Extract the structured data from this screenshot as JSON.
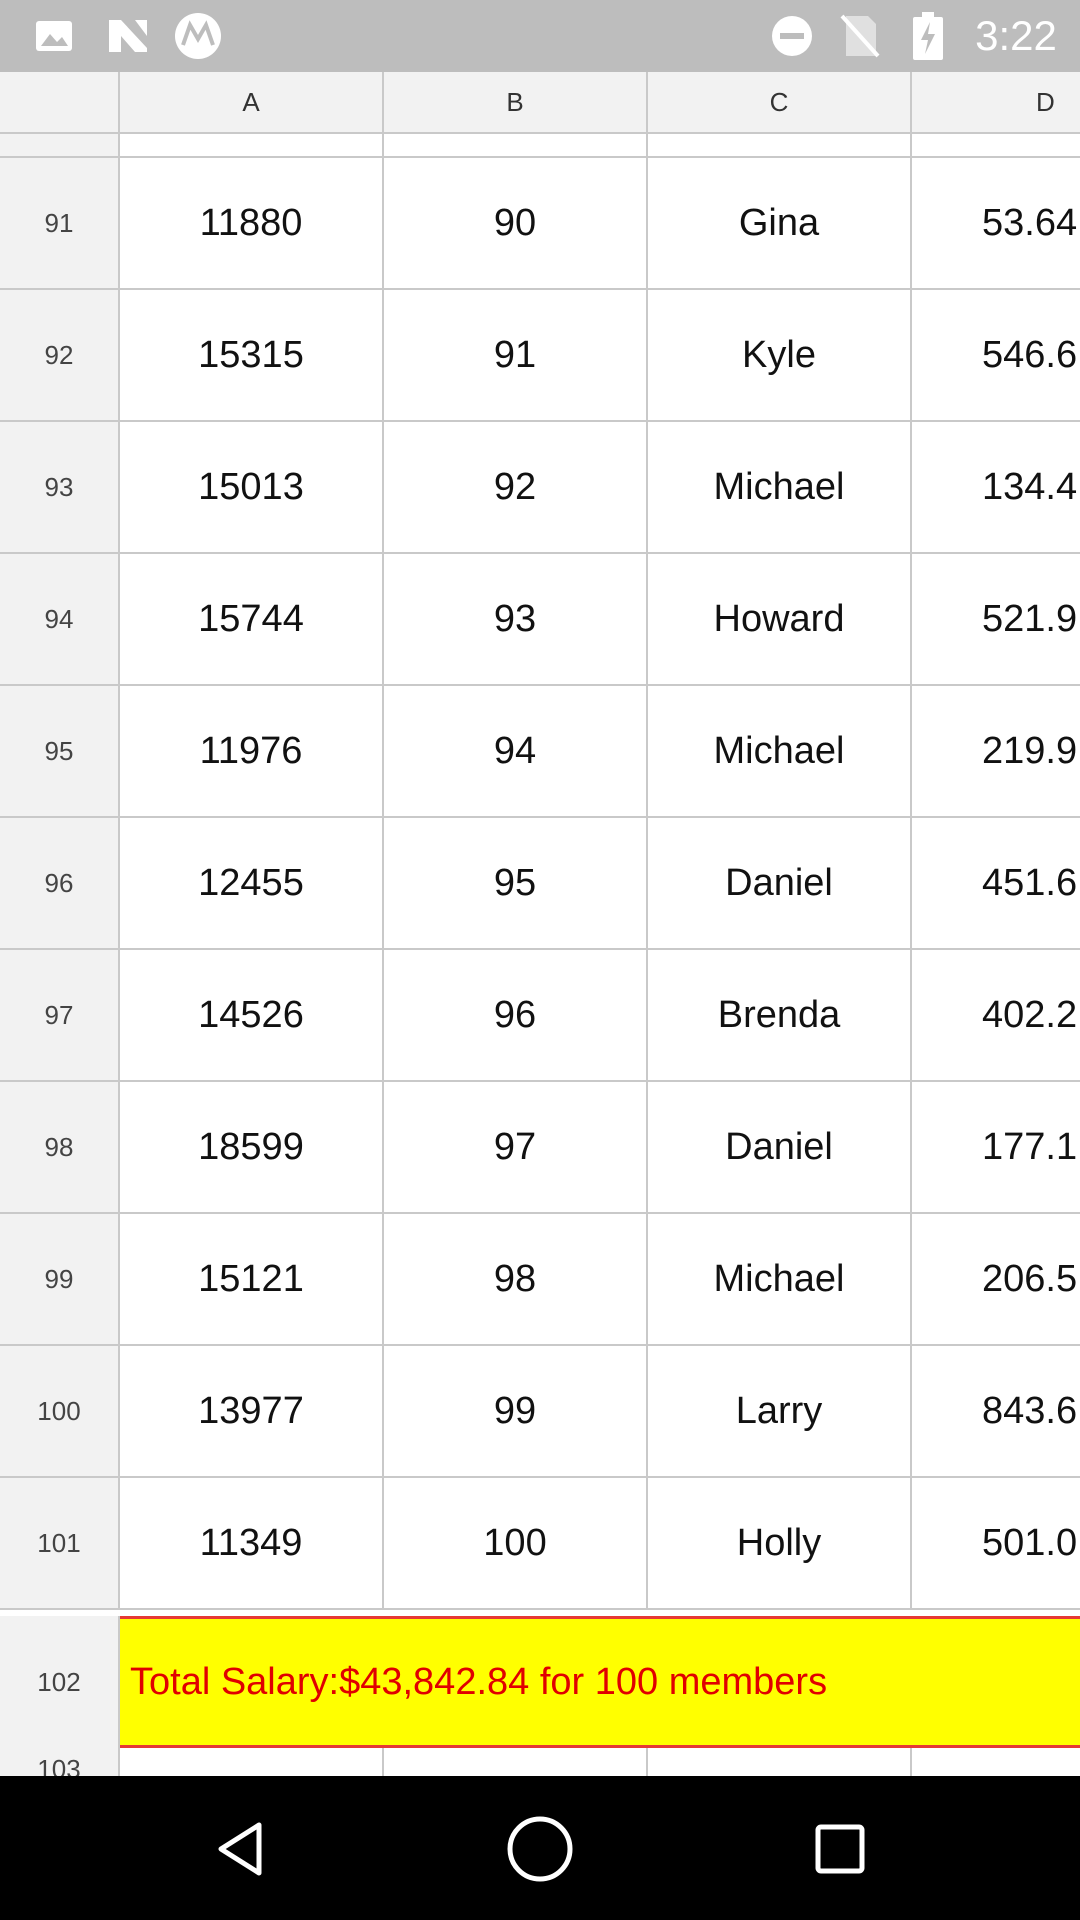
{
  "status_bar": {
    "time": "3:22",
    "left_icons": [
      "image-icon",
      "n-icon",
      "motorola-icon"
    ],
    "right_icons": [
      "do-not-disturb-icon",
      "no-sim-icon",
      "battery-charging-icon"
    ]
  },
  "columns": [
    "A",
    "B",
    "C",
    "D"
  ],
  "rows": [
    {
      "num": "91",
      "a": "11880",
      "b": "90",
      "c": "Gina",
      "d": "53.64"
    },
    {
      "num": "92",
      "a": "15315",
      "b": "91",
      "c": "Kyle",
      "d": "546.6"
    },
    {
      "num": "93",
      "a": "15013",
      "b": "92",
      "c": "Michael",
      "d": "134.4"
    },
    {
      "num": "94",
      "a": "15744",
      "b": "93",
      "c": "Howard",
      "d": "521.9"
    },
    {
      "num": "95",
      "a": "11976",
      "b": "94",
      "c": "Michael",
      "d": "219.9"
    },
    {
      "num": "96",
      "a": "12455",
      "b": "95",
      "c": "Daniel",
      "d": "451.6"
    },
    {
      "num": "97",
      "a": "14526",
      "b": "96",
      "c": "Brenda",
      "d": "402.2"
    },
    {
      "num": "98",
      "a": "18599",
      "b": "97",
      "c": "Daniel",
      "d": "177.1"
    },
    {
      "num": "99",
      "a": "15121",
      "b": "98",
      "c": "Michael",
      "d": "206.5"
    },
    {
      "num": "100",
      "a": "13977",
      "b": "99",
      "c": "Larry",
      "d": "843.6"
    },
    {
      "num": "101",
      "a": "11349",
      "b": "100",
      "c": "Holly",
      "d": "501.0"
    }
  ],
  "total_row": {
    "num": "102",
    "text": "Total Salary:$43,842.84 for 100 members"
  },
  "partial_row": {
    "num": "103"
  },
  "colors": {
    "total_bg": "#ffff00",
    "total_text": "#e00000",
    "header_bg": "#f2f2f2",
    "grid_line": "#c9c9c9"
  }
}
